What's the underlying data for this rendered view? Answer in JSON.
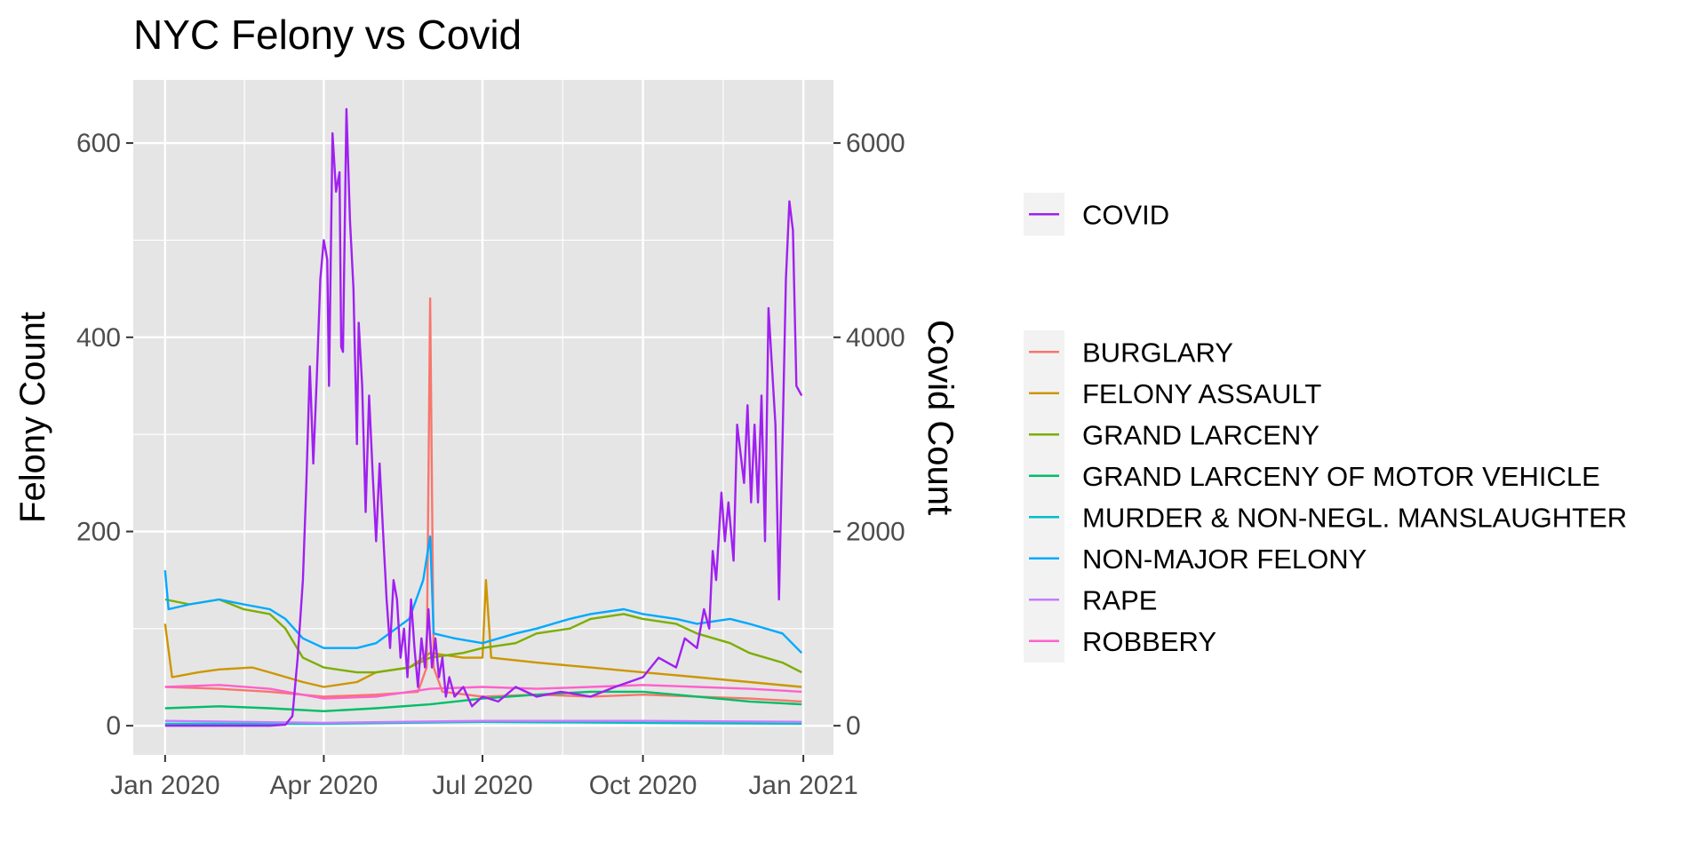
{
  "chart_data": {
    "type": "line",
    "title": "NYC Felony vs Covid",
    "xlabel": "",
    "ylabel": "Felony Count",
    "y2label": "Covid Count",
    "x_range": [
      "2020-01-01",
      "2020-12-31"
    ],
    "x_ticks": [
      {
        "date": "2020-01-01",
        "label": "Jan 2020"
      },
      {
        "date": "2020-04-01",
        "label": "Apr 2020"
      },
      {
        "date": "2020-07-01",
        "label": "Jul 2020"
      },
      {
        "date": "2020-10-01",
        "label": "Oct 2020"
      },
      {
        "date": "2021-01-01",
        "label": "Jan 2021"
      }
    ],
    "ylim": [
      -30,
      665
    ],
    "y_ticks": [
      0,
      200,
      400,
      600
    ],
    "y2lim": [
      -300,
      6650
    ],
    "y2_ticks": [
      0,
      2000,
      4000,
      6000
    ],
    "grid": true,
    "background": "#e5e5e5",
    "legend_position": "right",
    "covid_legend": [
      {
        "name": "COVID",
        "color": "#a020f0"
      }
    ],
    "felony_legend": [
      {
        "name": "BURGLARY",
        "color": "#f8766d"
      },
      {
        "name": "FELONY ASSAULT",
        "color": "#cd9600"
      },
      {
        "name": "GRAND LARCENY",
        "color": "#7cae00"
      },
      {
        "name": "GRAND LARCENY OF MOTOR VEHICLE",
        "color": "#00be67"
      },
      {
        "name": "MURDER & NON-NEGL. MANSLAUGHTER",
        "color": "#00bfc4"
      },
      {
        "name": "NON-MAJOR FELONY",
        "color": "#00a9ff"
      },
      {
        "name": "RAPE",
        "color": "#c77cff"
      },
      {
        "name": "ROBBERY",
        "color": "#ff61cc"
      }
    ],
    "series": [
      {
        "name": "COVID",
        "axis": "right",
        "color": "#a020f0",
        "points": [
          [
            "2020-01-01",
            0
          ],
          [
            "2020-03-01",
            0
          ],
          [
            "2020-03-10",
            10
          ],
          [
            "2020-03-14",
            100
          ],
          [
            "2020-03-17",
            700
          ],
          [
            "2020-03-20",
            1500
          ],
          [
            "2020-03-22",
            2500
          ],
          [
            "2020-03-24",
            3700
          ],
          [
            "2020-03-26",
            2700
          ],
          [
            "2020-03-28",
            3600
          ],
          [
            "2020-03-30",
            4600
          ],
          [
            "2020-04-01",
            5000
          ],
          [
            "2020-04-03",
            4800
          ],
          [
            "2020-04-04",
            3500
          ],
          [
            "2020-04-06",
            6100
          ],
          [
            "2020-04-08",
            5500
          ],
          [
            "2020-04-10",
            5700
          ],
          [
            "2020-04-11",
            3900
          ],
          [
            "2020-04-12",
            3850
          ],
          [
            "2020-04-14",
            6350
          ],
          [
            "2020-04-16",
            5200
          ],
          [
            "2020-04-18",
            4500
          ],
          [
            "2020-04-20",
            2900
          ],
          [
            "2020-04-21",
            4150
          ],
          [
            "2020-04-23",
            3500
          ],
          [
            "2020-04-25",
            2200
          ],
          [
            "2020-04-27",
            3400
          ],
          [
            "2020-04-29",
            2600
          ],
          [
            "2020-05-01",
            1900
          ],
          [
            "2020-05-03",
            2700
          ],
          [
            "2020-05-05",
            2000
          ],
          [
            "2020-05-07",
            1300
          ],
          [
            "2020-05-09",
            800
          ],
          [
            "2020-05-11",
            1500
          ],
          [
            "2020-05-13",
            1300
          ],
          [
            "2020-05-15",
            700
          ],
          [
            "2020-05-17",
            1000
          ],
          [
            "2020-05-19",
            500
          ],
          [
            "2020-05-21",
            1300
          ],
          [
            "2020-05-23",
            800
          ],
          [
            "2020-05-25",
            400
          ],
          [
            "2020-05-27",
            900
          ],
          [
            "2020-05-29",
            600
          ],
          [
            "2020-05-31",
            1200
          ],
          [
            "2020-06-02",
            600
          ],
          [
            "2020-06-04",
            900
          ],
          [
            "2020-06-06",
            500
          ],
          [
            "2020-06-08",
            700
          ],
          [
            "2020-06-10",
            300
          ],
          [
            "2020-06-12",
            500
          ],
          [
            "2020-06-15",
            300
          ],
          [
            "2020-06-20",
            400
          ],
          [
            "2020-06-25",
            200
          ],
          [
            "2020-07-01",
            300
          ],
          [
            "2020-07-10",
            250
          ],
          [
            "2020-07-20",
            400
          ],
          [
            "2020-08-01",
            300
          ],
          [
            "2020-08-15",
            350
          ],
          [
            "2020-09-01",
            300
          ],
          [
            "2020-09-15",
            400
          ],
          [
            "2020-10-01",
            500
          ],
          [
            "2020-10-10",
            700
          ],
          [
            "2020-10-20",
            600
          ],
          [
            "2020-10-25",
            900
          ],
          [
            "2020-11-01",
            800
          ],
          [
            "2020-11-05",
            1200
          ],
          [
            "2020-11-08",
            1000
          ],
          [
            "2020-11-10",
            1800
          ],
          [
            "2020-11-12",
            1500
          ],
          [
            "2020-11-15",
            2400
          ],
          [
            "2020-11-17",
            1900
          ],
          [
            "2020-11-19",
            2300
          ],
          [
            "2020-11-22",
            1700
          ],
          [
            "2020-11-24",
            3100
          ],
          [
            "2020-11-26",
            2800
          ],
          [
            "2020-11-28",
            2500
          ],
          [
            "2020-11-30",
            3300
          ],
          [
            "2020-12-02",
            2300
          ],
          [
            "2020-12-04",
            3100
          ],
          [
            "2020-12-06",
            2300
          ],
          [
            "2020-12-08",
            3400
          ],
          [
            "2020-12-10",
            1900
          ],
          [
            "2020-12-12",
            4300
          ],
          [
            "2020-12-14",
            3700
          ],
          [
            "2020-12-16",
            3100
          ],
          [
            "2020-12-18",
            1300
          ],
          [
            "2020-12-20",
            2900
          ],
          [
            "2020-12-22",
            4600
          ],
          [
            "2020-12-24",
            5400
          ],
          [
            "2020-12-26",
            5100
          ],
          [
            "2020-12-28",
            3500
          ],
          [
            "2020-12-31",
            3400
          ]
        ]
      },
      {
        "name": "BURGLARY",
        "axis": "left",
        "color": "#f8766d",
        "points": [
          [
            "2020-01-01",
            40
          ],
          [
            "2020-02-01",
            38
          ],
          [
            "2020-03-01",
            35
          ],
          [
            "2020-04-01",
            30
          ],
          [
            "2020-05-01",
            32
          ],
          [
            "2020-05-25",
            35
          ],
          [
            "2020-05-30",
            60
          ],
          [
            "2020-06-01",
            440
          ],
          [
            "2020-06-03",
            60
          ],
          [
            "2020-06-08",
            35
          ],
          [
            "2020-07-01",
            30
          ],
          [
            "2020-08-01",
            32
          ],
          [
            "2020-09-01",
            30
          ],
          [
            "2020-10-01",
            32
          ],
          [
            "2020-11-01",
            30
          ],
          [
            "2020-12-01",
            28
          ],
          [
            "2020-12-31",
            25
          ]
        ]
      },
      {
        "name": "FELONY ASSAULT",
        "axis": "left",
        "color": "#cd9600",
        "points": [
          [
            "2020-01-01",
            105
          ],
          [
            "2020-01-05",
            50
          ],
          [
            "2020-01-20",
            55
          ],
          [
            "2020-02-01",
            58
          ],
          [
            "2020-02-20",
            60
          ],
          [
            "2020-03-01",
            55
          ],
          [
            "2020-03-20",
            45
          ],
          [
            "2020-04-01",
            40
          ],
          [
            "2020-04-20",
            45
          ],
          [
            "2020-05-01",
            55
          ],
          [
            "2020-05-20",
            60
          ],
          [
            "2020-06-01",
            75
          ],
          [
            "2020-06-20",
            70
          ],
          [
            "2020-07-01",
            70
          ],
          [
            "2020-07-03",
            150
          ],
          [
            "2020-07-06",
            70
          ],
          [
            "2020-08-01",
            65
          ],
          [
            "2020-09-01",
            60
          ],
          [
            "2020-10-01",
            55
          ],
          [
            "2020-11-01",
            50
          ],
          [
            "2020-12-01",
            45
          ],
          [
            "2020-12-31",
            40
          ]
        ]
      },
      {
        "name": "GRAND LARCENY",
        "axis": "left",
        "color": "#7cae00",
        "points": [
          [
            "2020-01-01",
            130
          ],
          [
            "2020-01-15",
            125
          ],
          [
            "2020-02-01",
            130
          ],
          [
            "2020-02-15",
            120
          ],
          [
            "2020-03-01",
            115
          ],
          [
            "2020-03-10",
            100
          ],
          [
            "2020-03-20",
            70
          ],
          [
            "2020-04-01",
            60
          ],
          [
            "2020-04-20",
            55
          ],
          [
            "2020-05-01",
            55
          ],
          [
            "2020-05-20",
            60
          ],
          [
            "2020-06-01",
            70
          ],
          [
            "2020-06-20",
            75
          ],
          [
            "2020-07-01",
            80
          ],
          [
            "2020-07-20",
            85
          ],
          [
            "2020-08-01",
            95
          ],
          [
            "2020-08-20",
            100
          ],
          [
            "2020-09-01",
            110
          ],
          [
            "2020-09-20",
            115
          ],
          [
            "2020-10-01",
            110
          ],
          [
            "2020-10-20",
            105
          ],
          [
            "2020-11-01",
            95
          ],
          [
            "2020-11-20",
            85
          ],
          [
            "2020-12-01",
            75
          ],
          [
            "2020-12-20",
            65
          ],
          [
            "2020-12-31",
            55
          ]
        ]
      },
      {
        "name": "GRAND LARCENY OF MOTOR VEHICLE",
        "axis": "left",
        "color": "#00be67",
        "points": [
          [
            "2020-01-01",
            18
          ],
          [
            "2020-02-01",
            20
          ],
          [
            "2020-03-01",
            18
          ],
          [
            "2020-04-01",
            15
          ],
          [
            "2020-05-01",
            18
          ],
          [
            "2020-06-01",
            22
          ],
          [
            "2020-07-01",
            28
          ],
          [
            "2020-08-01",
            32
          ],
          [
            "2020-09-01",
            35
          ],
          [
            "2020-10-01",
            35
          ],
          [
            "2020-11-01",
            30
          ],
          [
            "2020-12-01",
            25
          ],
          [
            "2020-12-31",
            22
          ]
        ]
      },
      {
        "name": "MURDER & NON-NEGL. MANSLAUGHTER",
        "axis": "left",
        "color": "#00bfc4",
        "points": [
          [
            "2020-01-01",
            2
          ],
          [
            "2020-04-01",
            2
          ],
          [
            "2020-07-01",
            4
          ],
          [
            "2020-10-01",
            3
          ],
          [
            "2020-12-31",
            2
          ]
        ]
      },
      {
        "name": "NON-MAJOR FELONY",
        "axis": "left",
        "color": "#00a9ff",
        "points": [
          [
            "2020-01-01",
            160
          ],
          [
            "2020-01-03",
            120
          ],
          [
            "2020-01-15",
            125
          ],
          [
            "2020-02-01",
            130
          ],
          [
            "2020-02-15",
            125
          ],
          [
            "2020-03-01",
            120
          ],
          [
            "2020-03-10",
            110
          ],
          [
            "2020-03-20",
            90
          ],
          [
            "2020-04-01",
            80
          ],
          [
            "2020-04-20",
            80
          ],
          [
            "2020-05-01",
            85
          ],
          [
            "2020-05-20",
            110
          ],
          [
            "2020-05-28",
            150
          ],
          [
            "2020-06-01",
            195
          ],
          [
            "2020-06-03",
            95
          ],
          [
            "2020-06-15",
            90
          ],
          [
            "2020-07-01",
            85
          ],
          [
            "2020-07-20",
            95
          ],
          [
            "2020-08-01",
            100
          ],
          [
            "2020-08-20",
            110
          ],
          [
            "2020-09-01",
            115
          ],
          [
            "2020-09-20",
            120
          ],
          [
            "2020-10-01",
            115
          ],
          [
            "2020-10-20",
            110
          ],
          [
            "2020-11-01",
            105
          ],
          [
            "2020-11-20",
            110
          ],
          [
            "2020-12-01",
            105
          ],
          [
            "2020-12-20",
            95
          ],
          [
            "2020-12-31",
            75
          ]
        ]
      },
      {
        "name": "RAPE",
        "axis": "left",
        "color": "#c77cff",
        "points": [
          [
            "2020-01-01",
            5
          ],
          [
            "2020-04-01",
            3
          ],
          [
            "2020-07-01",
            5
          ],
          [
            "2020-10-01",
            5
          ],
          [
            "2020-12-31",
            4
          ]
        ]
      },
      {
        "name": "ROBBERY",
        "axis": "left",
        "color": "#ff61cc",
        "points": [
          [
            "2020-01-01",
            40
          ],
          [
            "2020-02-01",
            42
          ],
          [
            "2020-03-01",
            38
          ],
          [
            "2020-04-01",
            28
          ],
          [
            "2020-05-01",
            30
          ],
          [
            "2020-06-01",
            38
          ],
          [
            "2020-07-01",
            40
          ],
          [
            "2020-08-01",
            38
          ],
          [
            "2020-09-01",
            40
          ],
          [
            "2020-10-01",
            42
          ],
          [
            "2020-11-01",
            40
          ],
          [
            "2020-12-01",
            38
          ],
          [
            "2020-12-31",
            35
          ]
        ]
      }
    ]
  }
}
